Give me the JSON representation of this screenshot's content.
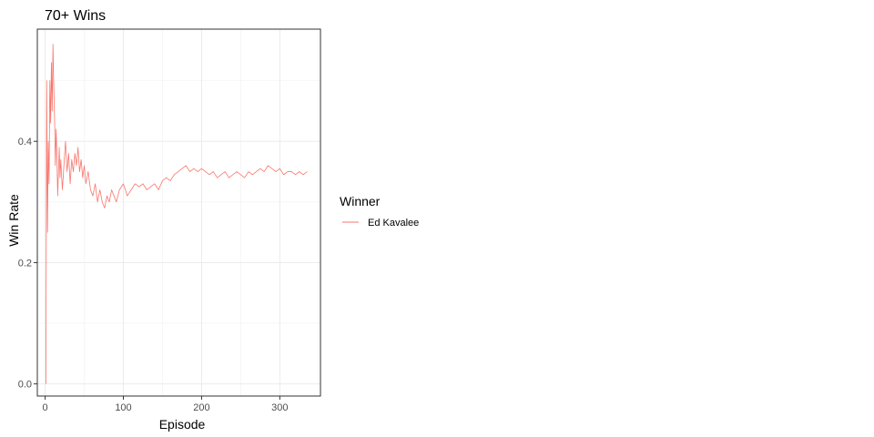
{
  "chart_data": {
    "type": "line",
    "title": "70+ Wins",
    "xlabel": "Episode",
    "ylabel": "Win Rate",
    "xlim": [
      -10,
      352
    ],
    "ylim": [
      -0.02,
      0.585
    ],
    "x_ticks": [
      0,
      100,
      200,
      300
    ],
    "x_tick_labels": [
      "0",
      "100",
      "200",
      "300"
    ],
    "y_ticks": [
      0.0,
      0.2,
      0.4
    ],
    "y_tick_labels": [
      "0.0",
      "0.2",
      "0.4"
    ],
    "x_minor": [
      50,
      150,
      250
    ],
    "y_minor": [
      0.1,
      0.3,
      0.5
    ],
    "grid": true,
    "legend": {
      "title": "Winner",
      "placement": "right"
    },
    "series": [
      {
        "name": "Ed Kavalee",
        "color": "#F8766D",
        "x": [
          1,
          2,
          3,
          4,
          5,
          6,
          7,
          8,
          9,
          10,
          11,
          12,
          13,
          14,
          15,
          16,
          17,
          18,
          19,
          20,
          22,
          24,
          26,
          28,
          30,
          32,
          34,
          36,
          38,
          40,
          42,
          44,
          46,
          48,
          50,
          52,
          55,
          58,
          61,
          64,
          67,
          70,
          73,
          76,
          79,
          82,
          85,
          88,
          91,
          95,
          100,
          105,
          110,
          115,
          120,
          125,
          130,
          135,
          140,
          145,
          150,
          155,
          160,
          165,
          170,
          175,
          180,
          185,
          190,
          195,
          200,
          205,
          210,
          215,
          220,
          225,
          230,
          235,
          240,
          245,
          250,
          255,
          260,
          265,
          270,
          275,
          280,
          285,
          290,
          295,
          300,
          305,
          310,
          315,
          320,
          325,
          330,
          335
        ],
        "y": [
          0.0,
          0.5,
          0.25,
          0.4,
          0.33,
          0.5,
          0.43,
          0.53,
          0.45,
          0.56,
          0.49,
          0.44,
          0.36,
          0.42,
          0.38,
          0.31,
          0.35,
          0.39,
          0.34,
          0.37,
          0.32,
          0.36,
          0.4,
          0.35,
          0.38,
          0.33,
          0.37,
          0.35,
          0.38,
          0.36,
          0.39,
          0.35,
          0.37,
          0.34,
          0.36,
          0.33,
          0.35,
          0.32,
          0.31,
          0.33,
          0.3,
          0.32,
          0.3,
          0.29,
          0.31,
          0.3,
          0.32,
          0.31,
          0.3,
          0.32,
          0.33,
          0.31,
          0.32,
          0.33,
          0.325,
          0.33,
          0.32,
          0.325,
          0.33,
          0.32,
          0.335,
          0.34,
          0.335,
          0.345,
          0.35,
          0.355,
          0.36,
          0.35,
          0.355,
          0.35,
          0.355,
          0.35,
          0.345,
          0.35,
          0.34,
          0.345,
          0.35,
          0.34,
          0.345,
          0.35,
          0.345,
          0.34,
          0.35,
          0.345,
          0.35,
          0.355,
          0.35,
          0.36,
          0.355,
          0.35,
          0.355,
          0.345,
          0.35,
          0.35,
          0.345,
          0.35,
          0.345,
          0.35
        ]
      }
    ]
  }
}
